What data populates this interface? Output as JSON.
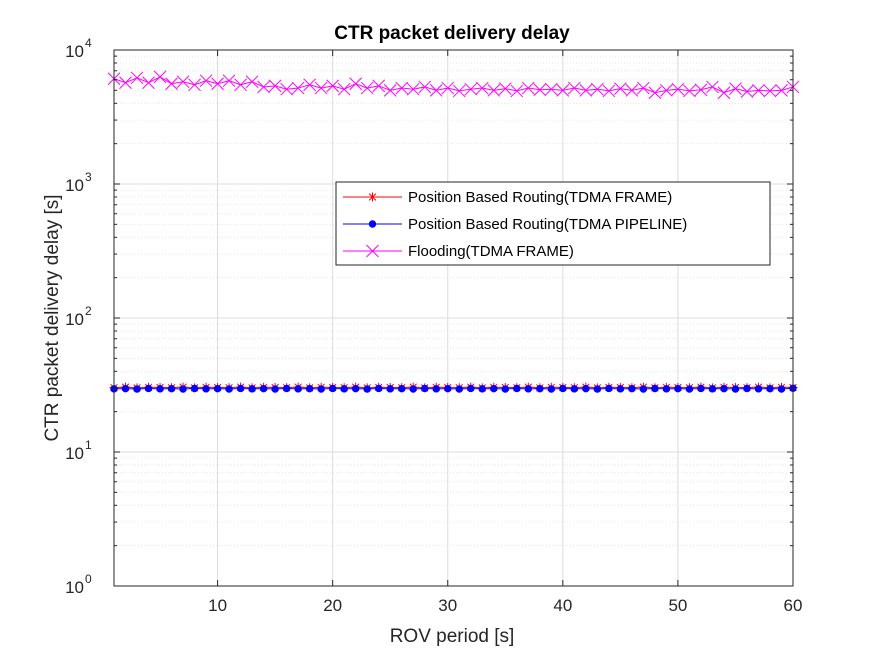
{
  "chart_data": {
    "type": "line",
    "title": "CTR packet delivery delay",
    "xlabel": "ROV period [s]",
    "ylabel": "CTR packet delivery delay [s]",
    "xlim": [
      1,
      60
    ],
    "ylim": [
      1,
      10000
    ],
    "yscale": "log",
    "grid": true,
    "legend_position": "center-right",
    "x_ticks": [
      10,
      20,
      30,
      40,
      50,
      60
    ],
    "y_ticks": [
      {
        "value": 1,
        "base": "10",
        "exp": "0"
      },
      {
        "value": 10,
        "base": "10",
        "exp": "1"
      },
      {
        "value": 100,
        "base": "10",
        "exp": "2"
      },
      {
        "value": 1000,
        "base": "10",
        "exp": "3"
      },
      {
        "value": 10000,
        "base": "10",
        "exp": "4"
      }
    ],
    "x": [
      1,
      2,
      3,
      4,
      5,
      6,
      7,
      8,
      9,
      10,
      11,
      12,
      13,
      14,
      15,
      16,
      17,
      18,
      19,
      20,
      21,
      22,
      23,
      24,
      25,
      26,
      27,
      28,
      29,
      30,
      31,
      32,
      33,
      34,
      35,
      36,
      37,
      38,
      39,
      40,
      41,
      42,
      43,
      44,
      45,
      46,
      47,
      48,
      49,
      50,
      51,
      52,
      53,
      54,
      55,
      56,
      57,
      58,
      59,
      60
    ],
    "series": [
      {
        "name": "Position Based Routing(TDMA FRAME)",
        "color": "#ff0000",
        "marker": "star",
        "values": [
          30.2,
          30.5,
          30.1,
          30.4,
          30.3,
          30.2,
          30.5,
          30.1,
          30.4,
          30.3,
          30.2,
          30.5,
          30.1,
          30.4,
          30.3,
          30.2,
          30.5,
          30.1,
          30.4,
          30.3,
          30.2,
          30.5,
          30.1,
          30.4,
          30.3,
          30.2,
          30.5,
          30.1,
          30.4,
          30.3,
          30.2,
          30.5,
          30.1,
          30.4,
          30.3,
          30.2,
          30.5,
          30.1,
          30.4,
          30.3,
          30.2,
          30.5,
          30.1,
          30.4,
          30.3,
          30.2,
          30.5,
          30.1,
          30.4,
          30.3,
          30.2,
          30.5,
          30.1,
          30.4,
          30.3,
          30.2,
          30.5,
          30.1,
          30.4,
          30.3
        ]
      },
      {
        "name": "Position Based Routing(TDMA PIPELINE)",
        "color": "#0000ff",
        "marker": "dot",
        "values": [
          29.6,
          29.7,
          29.5,
          29.8,
          29.6,
          29.7,
          29.5,
          29.8,
          29.6,
          29.7,
          29.5,
          29.8,
          29.6,
          29.7,
          29.5,
          29.8,
          29.6,
          29.7,
          29.5,
          29.8,
          29.6,
          29.7,
          29.5,
          29.8,
          29.6,
          29.7,
          29.5,
          29.8,
          29.6,
          29.7,
          29.5,
          29.8,
          29.6,
          29.7,
          29.5,
          29.8,
          29.6,
          29.7,
          29.5,
          29.8,
          29.6,
          29.7,
          29.5,
          29.8,
          29.6,
          29.7,
          29.5,
          29.8,
          29.6,
          29.7,
          29.5,
          29.8,
          29.6,
          29.7,
          29.5,
          29.8,
          29.6,
          29.7,
          29.5,
          29.9
        ]
      },
      {
        "name": "Flooding(TDMA FRAME)",
        "color": "#ff00ff",
        "marker": "x",
        "values": [
          6100,
          5700,
          6200,
          5700,
          6300,
          5600,
          5800,
          5500,
          5900,
          5600,
          5900,
          5500,
          5800,
          5300,
          5400,
          5100,
          5200,
          5500,
          5200,
          5400,
          5100,
          5600,
          5200,
          5400,
          5000,
          5200,
          5100,
          5300,
          5000,
          5200,
          4950,
          5100,
          5200,
          5000,
          5150,
          4950,
          5200,
          5050,
          5100,
          5000,
          5200,
          5000,
          5100,
          4950,
          5150,
          5000,
          5200,
          4800,
          5000,
          5100,
          4950,
          5050,
          5300,
          4800,
          5150,
          4900,
          5000,
          4950,
          5000,
          5300
        ]
      }
    ]
  }
}
